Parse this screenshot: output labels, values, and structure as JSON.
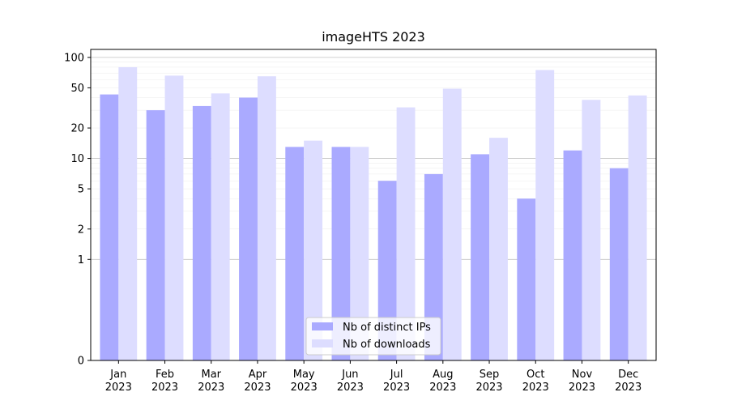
{
  "chart_data": {
    "type": "bar",
    "title": "imageHTS 2023",
    "xlabel": "",
    "ylabel": "",
    "y_scale": "symlog",
    "ylim": [
      0,
      120
    ],
    "y_major_ticks": [
      0,
      1,
      10,
      100
    ],
    "y_tick_labels": [
      "0",
      "1",
      "2",
      "5",
      "10",
      "20",
      "50",
      "100"
    ],
    "y_tick_values": [
      0,
      1,
      2,
      5,
      10,
      20,
      50,
      100
    ],
    "grid": true,
    "legend_position": "bottom-center",
    "categories": [
      "Jan\n2023",
      "Feb\n2023",
      "Mar\n2023",
      "Apr\n2023",
      "May\n2023",
      "Jun\n2023",
      "Jul\n2023",
      "Aug\n2023",
      "Sep\n2023",
      "Oct\n2023",
      "Nov\n2023",
      "Dec\n2023"
    ],
    "series": [
      {
        "name": "Nb of distinct IPs",
        "color": "#aaaaff",
        "values": [
          43,
          30,
          33,
          40,
          13,
          13,
          6,
          7,
          11,
          4,
          12,
          8
        ]
      },
      {
        "name": "Nb of downloads",
        "color": "#ddddff",
        "values": [
          80,
          66,
          44,
          65,
          15,
          13,
          32,
          49,
          16,
          75,
          38,
          42
        ]
      }
    ]
  }
}
